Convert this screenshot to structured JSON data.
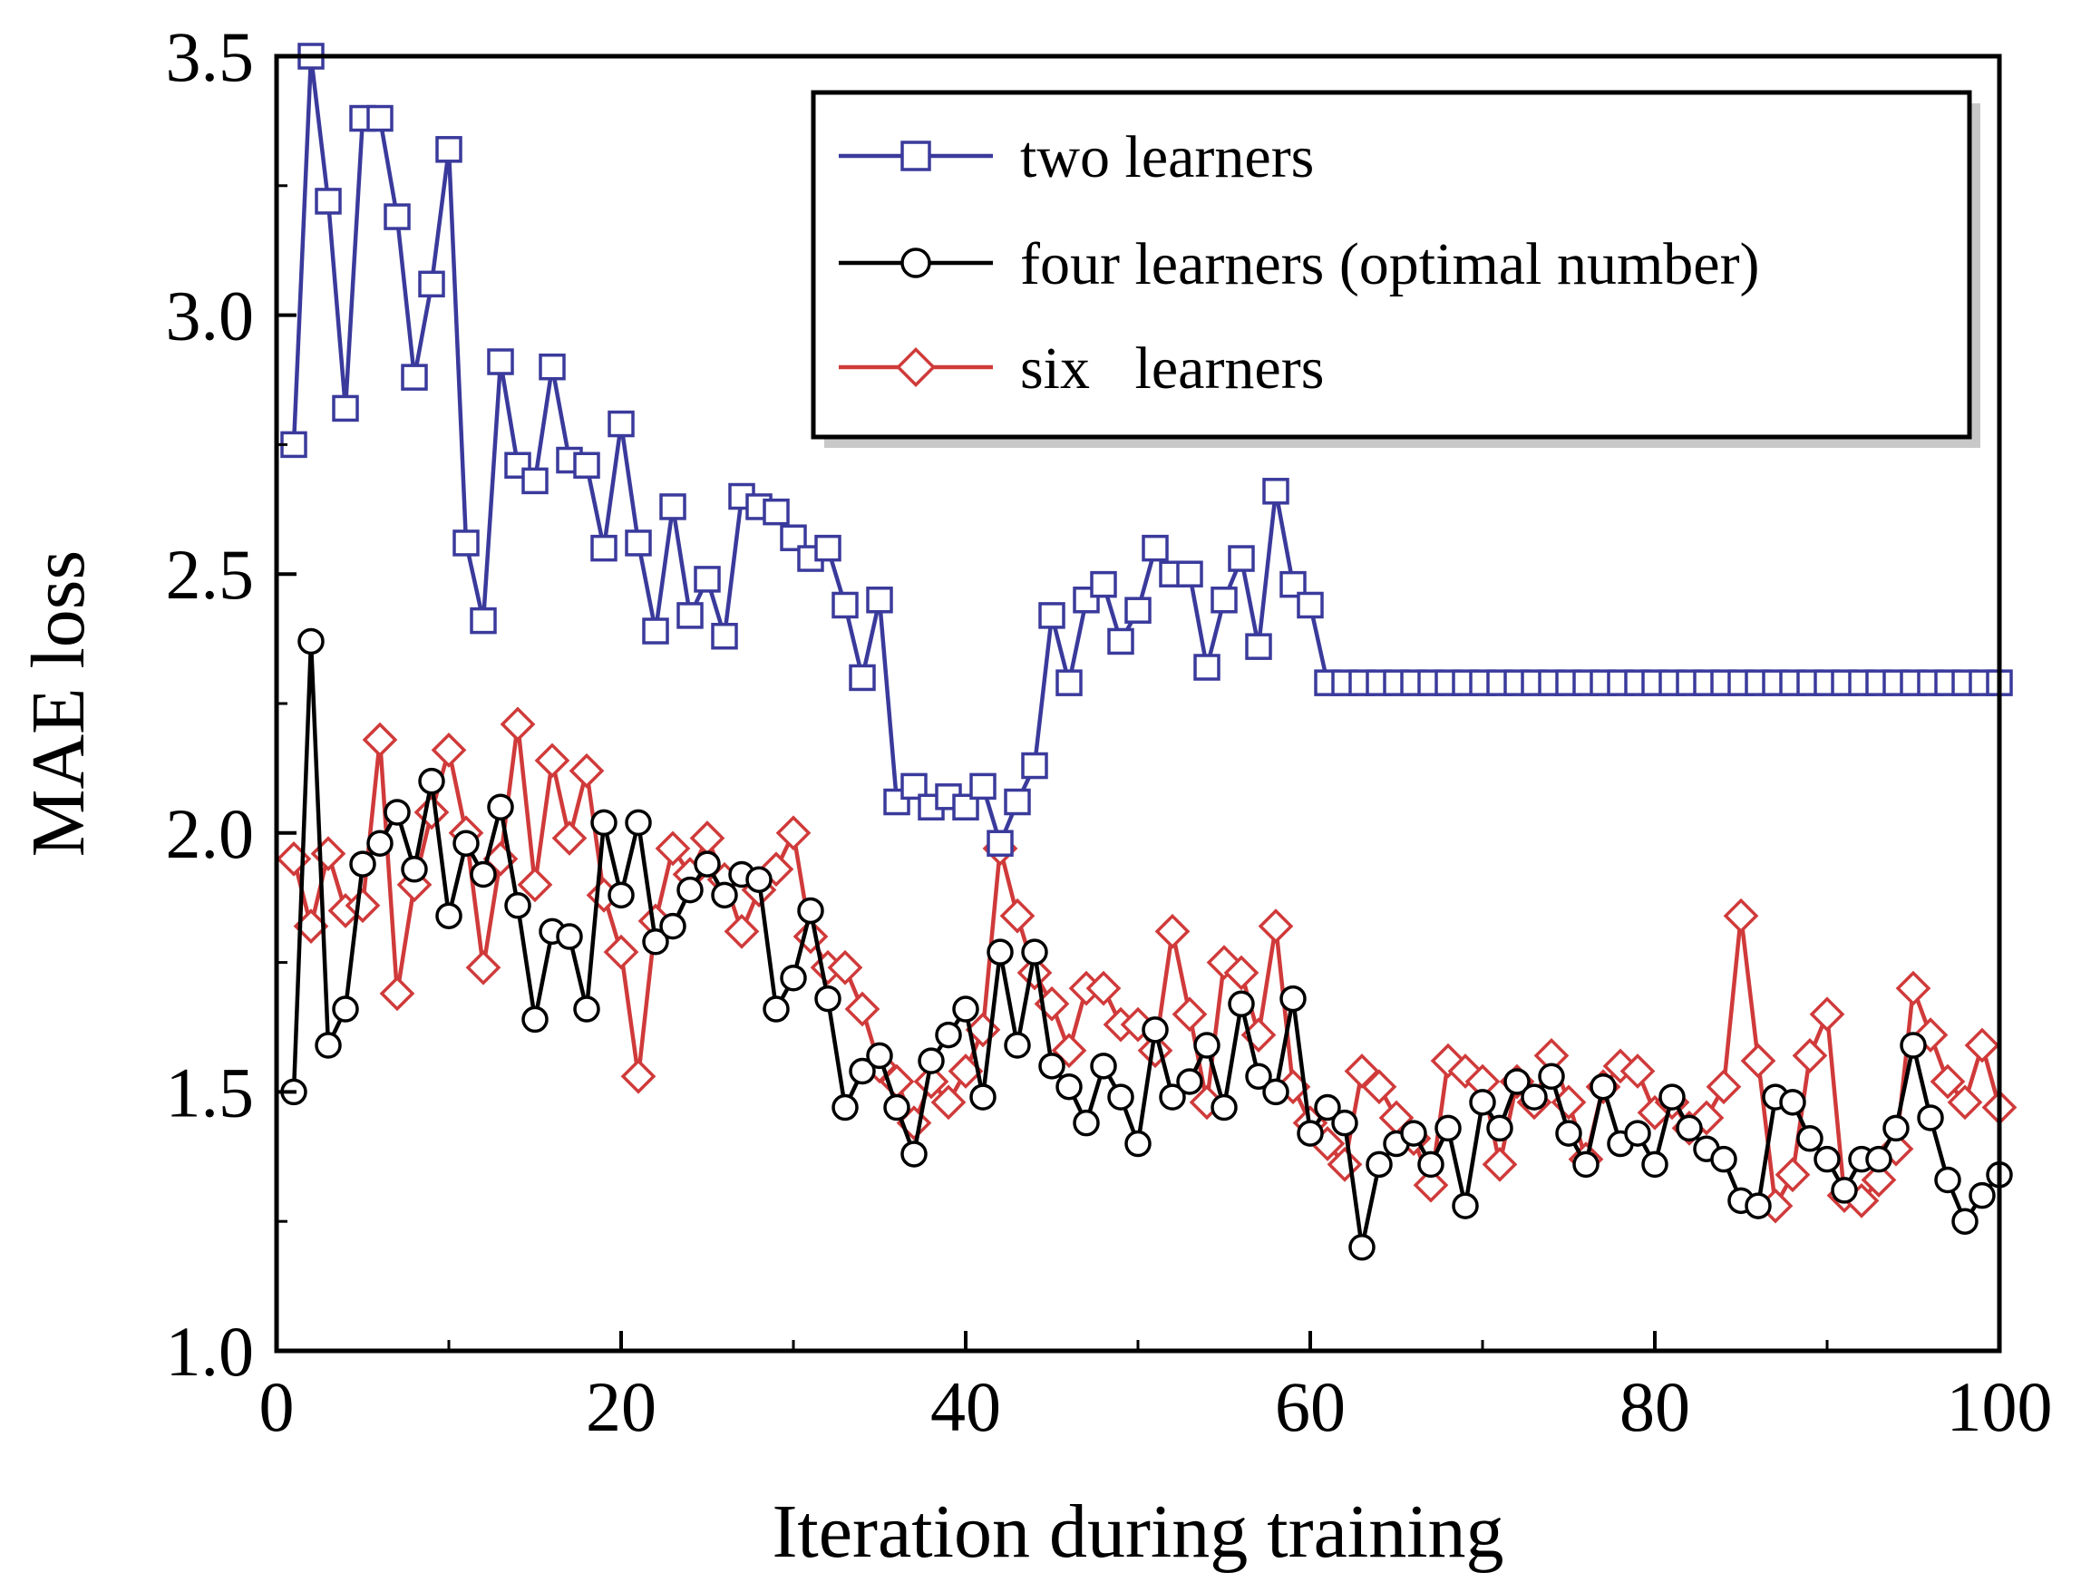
{
  "chart_data": {
    "type": "line",
    "title": "",
    "xlabel": "Iteration during training",
    "ylabel": "MAE loss",
    "xlim": [
      0,
      100
    ],
    "ylim": [
      1.0,
      3.5
    ],
    "xticks": [
      0,
      20,
      40,
      60,
      80,
      100
    ],
    "xtick_labels": [
      "0",
      "20",
      "40",
      "60",
      "80",
      "100"
    ],
    "yticks": [
      1.0,
      1.5,
      2.0,
      2.5,
      3.0,
      3.5
    ],
    "ytick_labels": [
      "1.0",
      "1.5",
      "2.0",
      "2.5",
      "3.0",
      "3.5"
    ],
    "grid": false,
    "legend_position": "top-right",
    "x": [
      1,
      2,
      3,
      4,
      5,
      6,
      7,
      8,
      9,
      10,
      11,
      12,
      13,
      14,
      15,
      16,
      17,
      18,
      19,
      20,
      21,
      22,
      23,
      24,
      25,
      26,
      27,
      28,
      29,
      30,
      31,
      32,
      33,
      34,
      35,
      36,
      37,
      38,
      39,
      40,
      41,
      42,
      43,
      44,
      45,
      46,
      47,
      48,
      49,
      50,
      51,
      52,
      53,
      54,
      55,
      56,
      57,
      58,
      59,
      60,
      61,
      62,
      63,
      64,
      65,
      66,
      67,
      68,
      69,
      70,
      71,
      72,
      73,
      74,
      75,
      76,
      77,
      78,
      79,
      80,
      81,
      82,
      83,
      84,
      85,
      86,
      87,
      88,
      89,
      90,
      91,
      92,
      93,
      94,
      95,
      96,
      97,
      98,
      99,
      100
    ],
    "series": [
      {
        "name": "two learners",
        "color": "#3a3a9c",
        "marker": "square",
        "values": [
          2.75,
          3.5,
          3.22,
          2.82,
          3.38,
          3.38,
          3.19,
          2.88,
          3.06,
          3.32,
          2.56,
          2.41,
          2.91,
          2.71,
          2.68,
          2.9,
          2.72,
          2.71,
          2.55,
          2.79,
          2.56,
          2.39,
          2.63,
          2.42,
          2.49,
          2.38,
          2.65,
          2.63,
          2.62,
          2.57,
          2.53,
          2.55,
          2.44,
          2.3,
          2.45,
          2.06,
          2.09,
          2.05,
          2.07,
          2.05,
          2.09,
          1.98,
          2.06,
          2.13,
          2.42,
          2.29,
          2.45,
          2.48,
          2.37,
          2.43,
          2.55,
          2.5,
          2.5,
          2.32,
          2.45,
          2.53,
          2.36,
          2.66,
          2.48,
          2.44,
          2.29,
          2.29,
          2.29,
          2.29,
          2.29,
          2.29,
          2.29,
          2.29,
          2.29,
          2.29,
          2.29,
          2.29,
          2.29,
          2.29,
          2.29,
          2.29,
          2.29,
          2.29,
          2.29,
          2.29,
          2.29,
          2.29,
          2.29,
          2.29,
          2.29,
          2.29,
          2.29,
          2.29,
          2.29,
          2.29,
          2.29,
          2.29,
          2.29,
          2.29,
          2.29,
          2.29,
          2.29,
          2.29,
          2.29,
          2.29
        ]
      },
      {
        "name": "four learners (optimal number)",
        "color": "#000000",
        "marker": "circle",
        "values": [
          1.5,
          2.37,
          1.59,
          1.66,
          1.94,
          1.98,
          2.04,
          1.93,
          2.1,
          1.84,
          1.98,
          1.92,
          2.05,
          1.86,
          1.64,
          1.81,
          1.8,
          1.66,
          2.02,
          1.88,
          2.02,
          1.79,
          1.82,
          1.89,
          1.94,
          1.88,
          1.92,
          1.91,
          1.66,
          1.72,
          1.85,
          1.68,
          1.47,
          1.54,
          1.57,
          1.47,
          1.38,
          1.56,
          1.61,
          1.66,
          1.49,
          1.77,
          1.59,
          1.77,
          1.55,
          1.51,
          1.44,
          1.55,
          1.49,
          1.4,
          1.62,
          1.49,
          1.52,
          1.59,
          1.47,
          1.67,
          1.53,
          1.5,
          1.68,
          1.42,
          1.47,
          1.44,
          1.2,
          1.36,
          1.4,
          1.42,
          1.36,
          1.43,
          1.28,
          1.48,
          1.43,
          1.52,
          1.49,
          1.53,
          1.42,
          1.36,
          1.51,
          1.4,
          1.42,
          1.36,
          1.49,
          1.43,
          1.39,
          1.37,
          1.29,
          1.28,
          1.49,
          1.48,
          1.41,
          1.37,
          1.31,
          1.37,
          1.37,
          1.43,
          1.59,
          1.45,
          1.33,
          1.25,
          1.3,
          1.34
        ]
      },
      {
        "name": "six   learners",
        "color": "#d03a3a",
        "marker": "diamond",
        "values": [
          1.95,
          1.82,
          1.96,
          1.85,
          1.86,
          2.18,
          1.69,
          1.9,
          2.04,
          2.16,
          2.0,
          1.74,
          1.95,
          2.21,
          1.9,
          2.14,
          1.99,
          2.12,
          1.88,
          1.77,
          1.53,
          1.83,
          1.97,
          1.92,
          1.99,
          1.91,
          1.81,
          1.89,
          1.93,
          2.0,
          1.8,
          1.74,
          1.74,
          1.66,
          1.55,
          1.52,
          1.44,
          1.52,
          1.48,
          1.54,
          1.62,
          1.97,
          1.84,
          1.73,
          1.67,
          1.58,
          1.7,
          1.7,
          1.63,
          1.63,
          1.58,
          1.81,
          1.65,
          1.48,
          1.75,
          1.73,
          1.61,
          1.82,
          1.51,
          1.44,
          1.4,
          1.36,
          1.54,
          1.51,
          1.45,
          1.41,
          1.32,
          1.56,
          1.54,
          1.52,
          1.36,
          1.52,
          1.48,
          1.57,
          1.48,
          1.37,
          1.51,
          1.55,
          1.54,
          1.46,
          1.48,
          1.43,
          1.45,
          1.51,
          1.84,
          1.56,
          1.28,
          1.34,
          1.57,
          1.65,
          1.3,
          1.29,
          1.33,
          1.39,
          1.7,
          1.61,
          1.52,
          1.48,
          1.59,
          1.47
        ]
      }
    ]
  }
}
